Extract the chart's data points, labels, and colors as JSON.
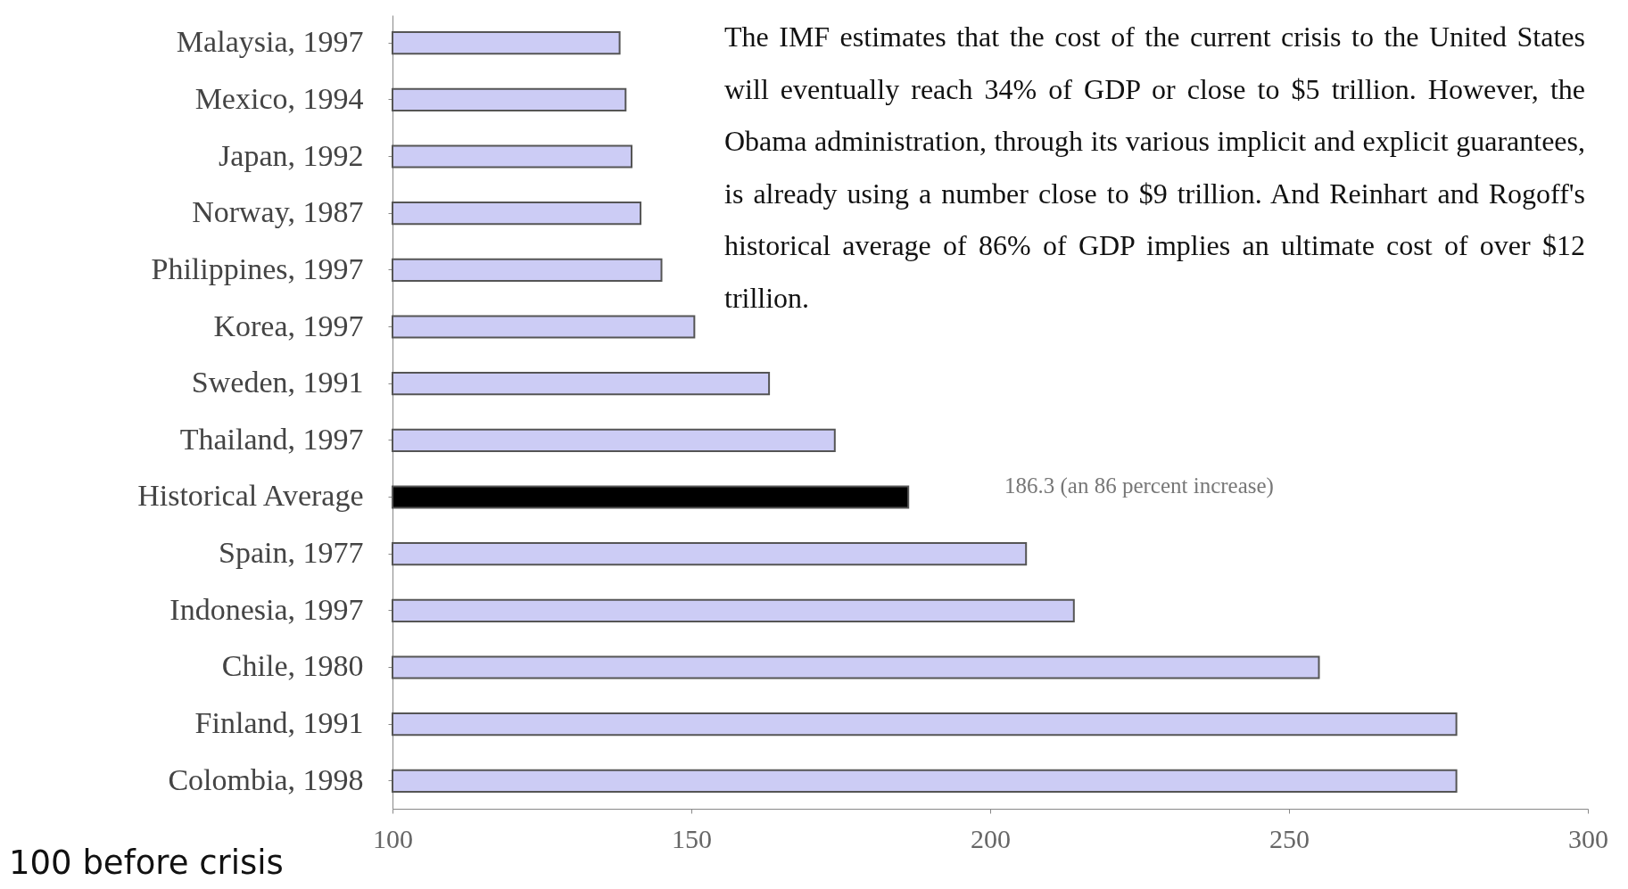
{
  "chart_data": {
    "type": "bar",
    "orientation": "horizontal",
    "categories": [
      "Malaysia, 1997",
      "Mexico, 1994",
      "Japan, 1992",
      "Norway, 1987",
      "Philippines, 1997",
      "Korea, 1997",
      "Sweden, 1991",
      "Thailand, 1997",
      "Historical Average",
      "Spain, 1977",
      "Indonesia, 1997",
      "Chile, 1980",
      "Finland, 1991",
      "Colombia, 1998"
    ],
    "values": [
      138,
      139,
      140,
      141.5,
      145,
      150.5,
      163,
      174,
      186.3,
      206,
      214,
      255,
      278,
      278
    ],
    "colors": [
      "#ccccf5",
      "#ccccf5",
      "#ccccf5",
      "#ccccf5",
      "#ccccf5",
      "#ccccf5",
      "#ccccf5",
      "#ccccf5",
      "#000000",
      "#ccccf5",
      "#ccccf5",
      "#ccccf5",
      "#ccccf5",
      "#ccccf5"
    ],
    "xlim": [
      100,
      300
    ],
    "xticks": [
      100,
      150,
      200,
      250,
      300
    ],
    "grid": false,
    "annotations": [
      "The IMF estimates that the cost of the current crisis to the United States will eventually reach 34% of GDP or close to $5 trillion. However, the Obama administration, through its various implicit and explicit guarantees, is already using a number close to $9 trillion. And Reinhart and Rogoff's historical average of 86% of GDP implies an ultimate cost of over $12 trillion.",
      "186.3 (an 86 percent increase)",
      "100 before crisis"
    ]
  }
}
